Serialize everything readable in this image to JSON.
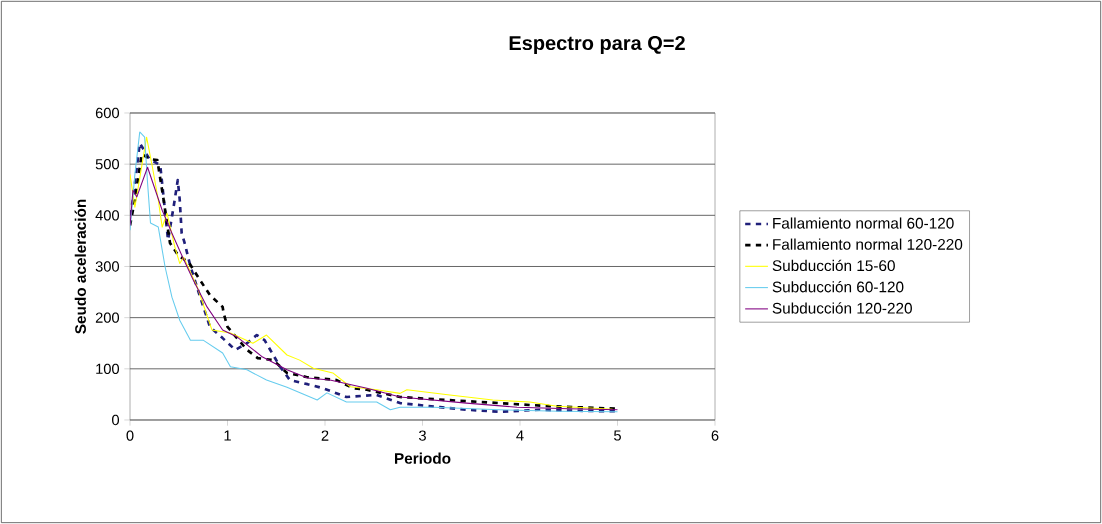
{
  "chart_data": {
    "type": "line",
    "title": "Espectro para Q=2",
    "xlabel": "Periodo",
    "ylabel": "Seudo aceleración",
    "xlim": [
      0,
      6
    ],
    "xticks": [
      0,
      1,
      2,
      3,
      4,
      5,
      6
    ],
    "ylim": [
      0,
      600
    ],
    "yticks": [
      0,
      100,
      200,
      300,
      400,
      500,
      600
    ],
    "grid": "y",
    "legend": "right",
    "marker": "none",
    "series": [
      {
        "name": "Fallamiento normal 60-120",
        "color": "#1f1f7a",
        "line_style": "dashed",
        "x": [
          0,
          0.03,
          0.1,
          0.2,
          0.31,
          0.39,
          0.45,
          0.49,
          0.51,
          0.53,
          0.56,
          0.62,
          0.72,
          0.82,
          0.95,
          1.08,
          1.2,
          1.3,
          1.38,
          1.54,
          1.64,
          1.82,
          1.98,
          2.22,
          2.53,
          2.77,
          3.18,
          3.45,
          3.79,
          4.2,
          4.6,
          5.0
        ],
        "values": [
          400,
          430,
          541,
          510,
          498,
          352,
          420,
          469,
          430,
          365,
          346,
          300,
          240,
          182,
          160,
          137,
          150,
          166,
          156,
          104,
          78,
          70,
          62,
          45,
          49,
          33,
          25,
          20,
          16,
          20,
          18,
          17
        ]
      },
      {
        "name": "Fallamiento normal 120-220",
        "color": "#000000",
        "line_style": "dashed",
        "x": [
          0,
          0.05,
          0.12,
          0.2,
          0.28,
          0.34,
          0.41,
          0.5,
          0.6,
          0.72,
          0.82,
          0.95,
          0.96,
          1.0,
          1.2,
          1.31,
          1.47,
          1.61,
          1.81,
          2.12,
          2.29,
          2.43,
          2.77,
          3.25,
          3.79,
          4.3,
          5.0
        ],
        "values": [
          380,
          430,
          520,
          510,
          508,
          436,
          346,
          320,
          309,
          273,
          244,
          221,
          209,
          182,
          137,
          121,
          117,
          92,
          84,
          78,
          62,
          59,
          45,
          39,
          33,
          27,
          22
        ]
      },
      {
        "name": "Subducción 15-60",
        "color": "#ffff00",
        "line_style": "solid",
        "x": [
          0,
          0.05,
          0.17,
          0.23,
          0.29,
          0.33,
          0.38,
          0.46,
          0.51,
          0.55,
          0.69,
          0.84,
          1.03,
          1.26,
          1.4,
          1.61,
          1.74,
          1.88,
          2.08,
          2.26,
          2.53,
          2.77,
          2.84,
          3.28,
          3.72,
          4.1,
          4.38,
          4.95
        ],
        "values": [
          480,
          416,
          553,
          494,
          430,
          377,
          404,
          338,
          306,
          318,
          260,
          176,
          170,
          150,
          166,
          127,
          117,
          101,
          92,
          65,
          59,
          52,
          59,
          49,
          39,
          35,
          27,
          21
        ]
      },
      {
        "name": "Subducción 60-120",
        "color": "#66ccee",
        "line_style": "solid",
        "x": [
          0,
          0.05,
          0.1,
          0.15,
          0.18,
          0.21,
          0.29,
          0.36,
          0.43,
          0.51,
          0.62,
          0.75,
          0.95,
          1.03,
          1.2,
          1.4,
          1.61,
          1.92,
          2.02,
          2.22,
          2.53,
          2.67,
          2.77,
          3.11,
          3.79,
          4.4,
          5.0
        ],
        "values": [
          371,
          480,
          563,
          553,
          463,
          385,
          377,
          299,
          240,
          195,
          156,
          156,
          131,
          104,
          98,
          78,
          64,
          39,
          53,
          35,
          35,
          20,
          25,
          25,
          20,
          17,
          16
        ]
      },
      {
        "name": "Subducción 120-220",
        "color": "#800080",
        "line_style": "solid",
        "x": [
          0,
          0.03,
          0.07,
          0.18,
          0.26,
          0.33,
          0.43,
          0.54,
          0.65,
          0.79,
          0.95,
          1.1,
          1.36,
          1.61,
          1.82,
          2.05,
          2.43,
          2.77,
          3.45,
          3.97,
          4.5,
          5.0
        ],
        "values": [
          380,
          449,
          436,
          494,
          449,
          410,
          365,
          318,
          273,
          221,
          176,
          162,
          123,
          98,
          82,
          78,
          62,
          45,
          33,
          25,
          22,
          20
        ]
      }
    ]
  }
}
